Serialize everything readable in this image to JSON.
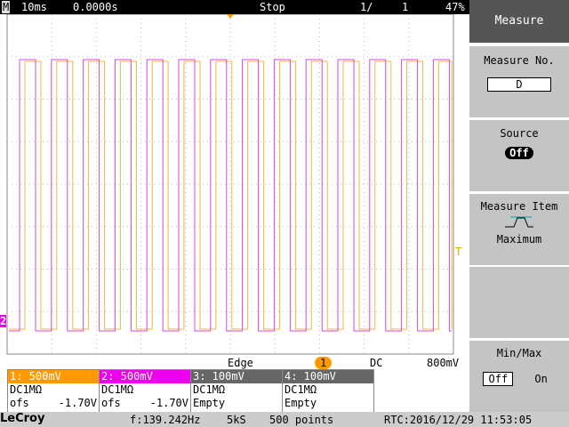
{
  "header": {
    "mode": "M",
    "timebase": "10ms",
    "delay": "0.0000s",
    "status": "Stop",
    "sequence": "1/",
    "count": "1",
    "battery": "47%"
  },
  "menu": {
    "title": "Measure",
    "measure_no": {
      "label": "Measure No.",
      "value": "D"
    },
    "source": {
      "label": "Source",
      "value": "Off"
    },
    "measure_item": {
      "label": "Measure Item",
      "value": "Maximum"
    },
    "min_max": {
      "label": "Min/Max",
      "options": [
        "Off",
        "On"
      ]
    }
  },
  "markers": {
    "trigger_level": "T",
    "channel_2": "2"
  },
  "trigger": {
    "type": "Edge",
    "channel": "1",
    "coupling": "DC",
    "level": "800mV"
  },
  "channels": [
    {
      "label": "1: 500mV",
      "coupling": "DC1MΩ",
      "offset_label": "ofs",
      "offset": "-1.70V"
    },
    {
      "label": "2: 500mV",
      "coupling": "DC1MΩ",
      "offset_label": "ofs",
      "offset": "-1.70V"
    },
    {
      "label": "3: 100mV",
      "coupling": "DC1MΩ",
      "offset_label": "Empty"
    },
    {
      "label": "4: 100mV",
      "coupling": "DC1MΩ",
      "offset_label": "Empty"
    }
  ],
  "footer": {
    "brand": "LeCroy",
    "frequency": "f:139.242Hz",
    "sample_rate": "5kS",
    "points": "500 points",
    "rtc": "RTC:2016/12/29 11:53:05"
  }
}
